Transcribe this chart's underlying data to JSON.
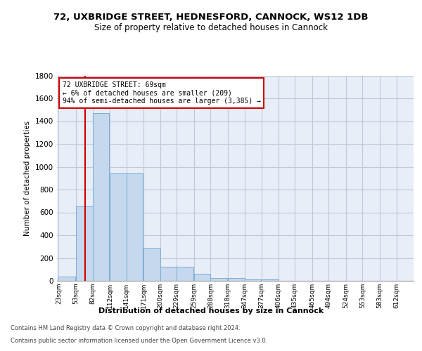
{
  "title1": "72, UXBRIDGE STREET, HEDNESFORD, CANNOCK, WS12 1DB",
  "title2": "Size of property relative to detached houses in Cannock",
  "xlabel": "Distribution of detached houses by size in Cannock",
  "ylabel": "Number of detached properties",
  "footer1": "Contains HM Land Registry data © Crown copyright and database right 2024.",
  "footer2": "Contains public sector information licensed under the Open Government Licence v3.0.",
  "annotation_line1": "72 UXBRIDGE STREET: 69sqm",
  "annotation_line2": "← 6% of detached houses are smaller (209)",
  "annotation_line3": "94% of semi-detached houses are larger (3,385) →",
  "bar_left_edges": [
    23,
    53,
    82,
    112,
    141,
    171,
    200,
    229,
    259,
    288,
    318,
    347,
    377,
    406,
    435,
    465,
    494,
    524,
    553,
    583
  ],
  "bar_heights": [
    40,
    650,
    1470,
    940,
    940,
    290,
    125,
    125,
    60,
    25,
    25,
    12,
    12,
    0,
    0,
    0,
    0,
    0,
    0,
    0
  ],
  "bin_width": 29,
  "property_size": 69,
  "tick_labels": [
    "23sqm",
    "53sqm",
    "82sqm",
    "112sqm",
    "141sqm",
    "171sqm",
    "200sqm",
    "229sqm",
    "259sqm",
    "288sqm",
    "318sqm",
    "347sqm",
    "377sqm",
    "406sqm",
    "435sqm",
    "465sqm",
    "494sqm",
    "524sqm",
    "553sqm",
    "583sqm",
    "612sqm"
  ],
  "bar_color": "#c5d8ee",
  "bar_edge_color": "#7aaed4",
  "vline_color": "#cc0000",
  "annotation_box_color": "#cc0000",
  "bg_color": "#e8eef8",
  "ylim": [
    0,
    1800
  ],
  "xlim": [
    20,
    642
  ]
}
